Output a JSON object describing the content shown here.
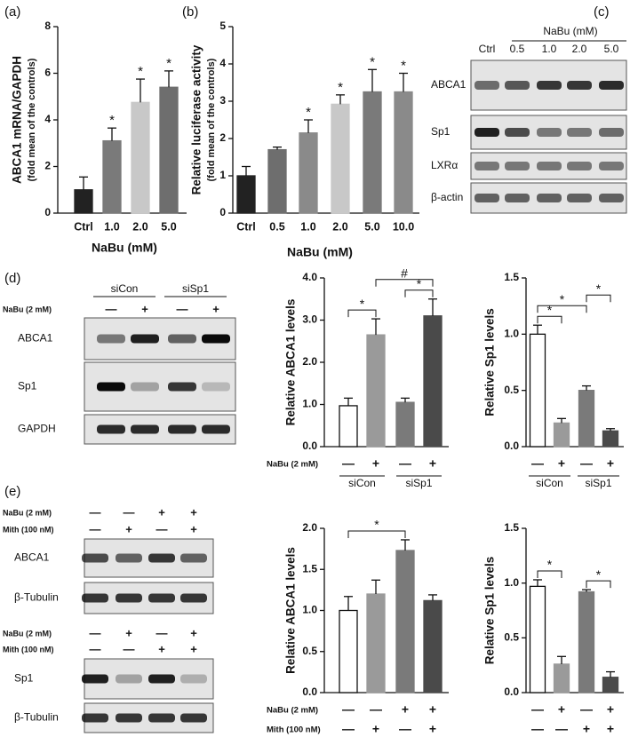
{
  "chart_data": [
    {
      "type": "bar",
      "panel": "(a)",
      "ylabel": "ABCA1 mRNA/GAPDH",
      "ylabel_sub": "(fold mean of the controls)",
      "xlabel": "NaBu (mM)",
      "categories": [
        "Ctrl",
        "1.0",
        "2.0",
        "5.0"
      ],
      "values": [
        1.0,
        3.1,
        4.75,
        5.4
      ],
      "errors": [
        0.55,
        0.55,
        1.0,
        0.7
      ],
      "colors": [
        "#222222",
        "#7a7a7a",
        "#c8c8c8",
        "#6e6e6e"
      ],
      "stars": [
        null,
        "*",
        "*",
        "*"
      ],
      "ylim": [
        0,
        8
      ],
      "yticks": [
        0,
        2,
        4,
        6,
        8
      ]
    },
    {
      "type": "bar",
      "panel": "(b)",
      "ylabel": "Relative luciferase activity",
      "ylabel_sub": "(fold mean of the controls)",
      "xlabel": "NaBu (mM)",
      "categories": [
        "Ctrl",
        "0.5",
        "1.0",
        "2.0",
        "5.0",
        "10.0"
      ],
      "values": [
        1.0,
        1.7,
        2.15,
        2.92,
        3.25,
        3.25
      ],
      "errors": [
        0.25,
        0.07,
        0.35,
        0.25,
        0.6,
        0.5
      ],
      "colors": [
        "#222222",
        "#6e6e6e",
        "#8a8a8a",
        "#c8c8c8",
        "#7a7a7a",
        "#8a8a8a"
      ],
      "stars": [
        null,
        null,
        "*",
        "*",
        "*",
        "*"
      ],
      "ylim": [
        0,
        5
      ],
      "yticks": [
        0,
        1,
        2,
        3,
        4,
        5
      ]
    },
    {
      "type": "bar",
      "ylabel": "Relative ABCA1 levels",
      "values": [
        0.97,
        2.65,
        1.05,
        3.1
      ],
      "errors": [
        0.18,
        0.38,
        0.1,
        0.4
      ],
      "colors": [
        "#ffffff",
        "#9a9a9a",
        "#7a7a7a",
        "#4a4a4a"
      ],
      "brackets": [
        {
          "between": [
            0,
            1
          ],
          "label": "*"
        },
        {
          "between": [
            2,
            3
          ],
          "label": "*"
        },
        {
          "between": [
            1,
            3
          ],
          "label": "#"
        }
      ],
      "conditions": [
        {
          "name": "NaBu (2 mM)",
          "marks": [
            "—",
            "+",
            "—",
            "+"
          ]
        }
      ],
      "groups": [
        "siCon",
        "siSp1"
      ],
      "ylim": [
        0,
        4
      ],
      "yticks": [
        {
          "value": 0,
          "label": "0.0"
        },
        {
          "value": 1,
          "label": "1.0"
        },
        {
          "value": 2,
          "label": "2.0"
        },
        {
          "value": 3,
          "label": "3.0"
        },
        {
          "value": 4,
          "label": "4.0"
        }
      ]
    },
    {
      "type": "bar",
      "ylabel": "Relative Sp1 levels",
      "values": [
        1.0,
        0.21,
        0.5,
        0.14
      ],
      "errors": [
        0.08,
        0.04,
        0.04,
        0.02
      ],
      "colors": [
        "#ffffff",
        "#9a9a9a",
        "#7a7a7a",
        "#4a4a4a"
      ],
      "brackets": [
        {
          "between": [
            0,
            1
          ],
          "label": "*"
        },
        {
          "between": [
            0,
            2
          ],
          "label": "*"
        },
        {
          "between": [
            2,
            3
          ],
          "label": "*"
        }
      ],
      "conditions": [
        {
          "marks": [
            "—",
            "+",
            "—",
            "+"
          ]
        }
      ],
      "groups": [
        "siCon",
        "siSp1"
      ],
      "ylim": [
        0,
        1.5
      ],
      "yticks": [
        {
          "value": 0,
          "label": "0.0"
        },
        0.5,
        {
          "value": 1,
          "label": "1.0"
        },
        1.5
      ]
    },
    {
      "type": "bar",
      "ylabel": "Relative ABCA1 levels",
      "values": [
        1.0,
        1.2,
        1.73,
        1.12
      ],
      "errors": [
        0.17,
        0.17,
        0.13,
        0.07
      ],
      "colors": [
        "#ffffff",
        "#9a9a9a",
        "#7a7a7a",
        "#4a4a4a"
      ],
      "brackets": [
        {
          "between": [
            0,
            2
          ],
          "label": "*"
        }
      ],
      "conditions": [
        {
          "name": "NaBu (2 mM)",
          "marks": [
            "—",
            "—",
            "+",
            "+"
          ]
        },
        {
          "name": "Mith (100 nM)",
          "marks": [
            "—",
            "+",
            "—",
            "+"
          ]
        }
      ],
      "ylim": [
        0,
        2
      ],
      "yticks": [
        {
          "value": 0,
          "label": "0.0"
        },
        0.5,
        {
          "value": 1,
          "label": "1.0"
        },
        1.5,
        {
          "value": 2,
          "label": "2.0"
        }
      ]
    },
    {
      "type": "bar",
      "ylabel": "Relative Sp1 levels",
      "values": [
        0.97,
        0.26,
        0.92,
        0.14
      ],
      "errors": [
        0.06,
        0.07,
        0.02,
        0.05
      ],
      "colors": [
        "#ffffff",
        "#9a9a9a",
        "#7a7a7a",
        "#4a4a4a"
      ],
      "brackets": [
        {
          "between": [
            0,
            1
          ],
          "label": "*"
        },
        {
          "between": [
            2,
            3
          ],
          "label": "*"
        }
      ],
      "conditions": [
        {
          "marks": [
            "—",
            "+",
            "—",
            "+"
          ]
        },
        {
          "marks": [
            "—",
            "—",
            "+",
            "+"
          ]
        }
      ],
      "ylim": [
        0,
        1.5
      ],
      "yticks": [
        {
          "value": 0,
          "label": "0.0"
        },
        0.5,
        {
          "value": 1,
          "label": "1.0"
        },
        1.5
      ]
    }
  ],
  "blots": [
    {
      "panel": "(c)",
      "header": "NaBu (mM)",
      "lanes": [
        "Ctrl",
        "0.5",
        "1.0",
        "2.0",
        "5.0"
      ],
      "rows": [
        "ABCA1",
        "Sp1",
        "LXRα",
        "β-actin"
      ]
    },
    {
      "panel": "(d)",
      "groups": [
        "siCon",
        "siSp1"
      ],
      "conditions": [
        {
          "name": "NaBu (2 mM)",
          "marks": [
            "—",
            "+",
            "—",
            "+"
          ]
        }
      ],
      "rows": [
        "ABCA1",
        "Sp1",
        "GAPDH"
      ]
    },
    {
      "panel": "(e)",
      "sets": [
        {
          "conditions": [
            {
              "name": "NaBu (2 mM)",
              "marks": [
                "—",
                "—",
                "+",
                "+"
              ]
            },
            {
              "name": "Mith (100 nM)",
              "marks": [
                "—",
                "+",
                "—",
                "+"
              ]
            }
          ],
          "rows": [
            "ABCA1",
            "β-Tubulin"
          ]
        },
        {
          "conditions": [
            {
              "name": "NaBu (2 mM)",
              "marks": [
                "—",
                "+",
                "—",
                "+"
              ]
            },
            {
              "name": "Mith (100 nM)",
              "marks": [
                "—",
                "—",
                "+",
                "+"
              ]
            }
          ],
          "rows": [
            "Sp1",
            "β-Tubulin"
          ]
        }
      ]
    }
  ]
}
